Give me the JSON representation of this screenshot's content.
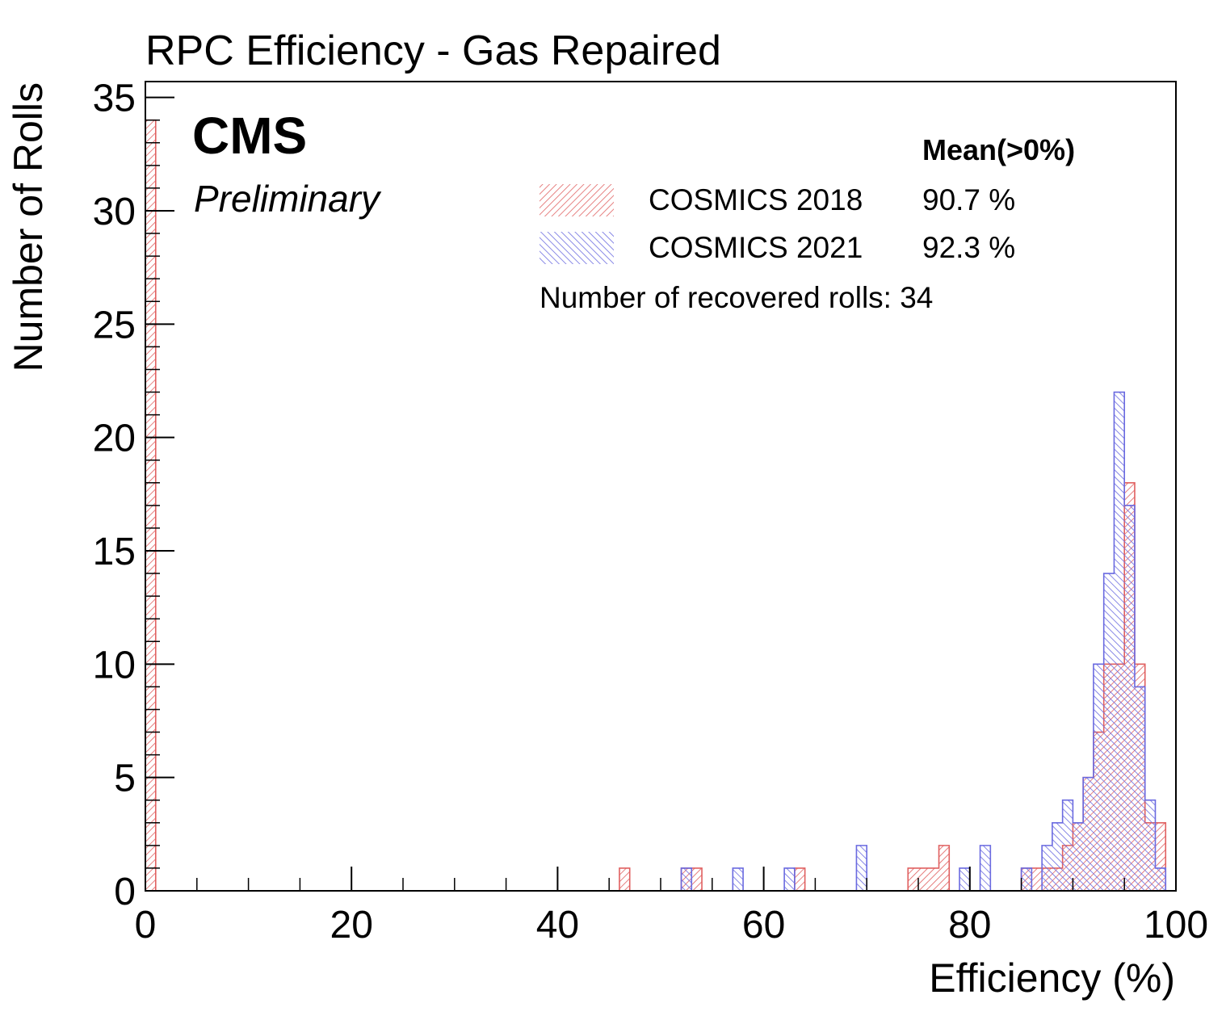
{
  "chart_data": {
    "type": "histogram",
    "title": "RPC Efficiency - Gas Repaired",
    "xlabel": "Efficiency (%)",
    "ylabel": "Number of Rolls",
    "xlim": [
      0,
      100
    ],
    "ylim": [
      0,
      35.7
    ],
    "bin_width": 1,
    "x_ticks": [
      0,
      20,
      40,
      60,
      80,
      100
    ],
    "y_ticks": [
      0,
      5,
      10,
      15,
      20,
      25,
      30,
      35
    ],
    "grid": false,
    "legend_position": "top-right",
    "experiment_label": "CMS",
    "status_label": "Preliminary",
    "legend_header": "Mean(>0%)",
    "recovered_note": "Number of recovered rolls: 34",
    "series": [
      {
        "name": "COSMICS 2018",
        "mean": "90.7 %",
        "color": "#e06060",
        "bins": [
          [
            0,
            34
          ],
          [
            46,
            1
          ],
          [
            52,
            1
          ],
          [
            53,
            1
          ],
          [
            63,
            1
          ],
          [
            74,
            1
          ],
          [
            75,
            1
          ],
          [
            76,
            1
          ],
          [
            77,
            2
          ],
          [
            85,
            1
          ],
          [
            86,
            1
          ],
          [
            87,
            1
          ],
          [
            88,
            1
          ],
          [
            89,
            2
          ],
          [
            90,
            3
          ],
          [
            91,
            5
          ],
          [
            92,
            7
          ],
          [
            93,
            10
          ],
          [
            94,
            10
          ],
          [
            95,
            18
          ],
          [
            96,
            10
          ],
          [
            97,
            3
          ],
          [
            98,
            3
          ]
        ]
      },
      {
        "name": "COSMICS 2021",
        "mean": "92.3 %",
        "color": "#6a6ae0",
        "bins": [
          [
            52,
            1
          ],
          [
            57,
            1
          ],
          [
            62,
            1
          ],
          [
            69,
            2
          ],
          [
            79,
            1
          ],
          [
            81,
            2
          ],
          [
            85,
            1
          ],
          [
            87,
            2
          ],
          [
            88,
            3
          ],
          [
            89,
            4
          ],
          [
            90,
            3
          ],
          [
            91,
            5
          ],
          [
            92,
            10
          ],
          [
            93,
            14
          ],
          [
            94,
            22
          ],
          [
            95,
            17
          ],
          [
            96,
            9
          ],
          [
            97,
            4
          ],
          [
            98,
            1
          ]
        ]
      }
    ]
  }
}
